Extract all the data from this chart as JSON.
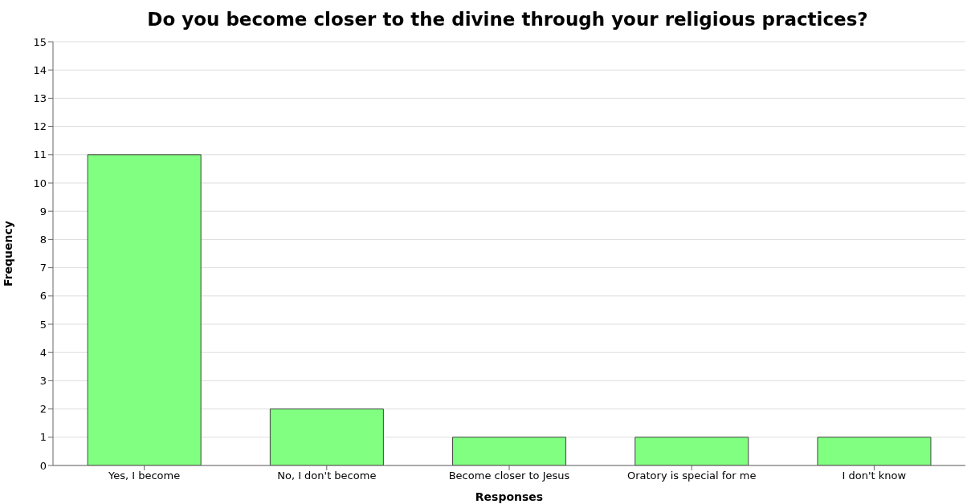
{
  "chart_data": {
    "type": "bar",
    "title": "Do you become closer to the divine through your religious practices?",
    "xlabel": "Responses",
    "ylabel": "Frequency",
    "categories": [
      "Yes, I become",
      "No, I don't become",
      "Become closer to Jesus",
      "Oratory is special for me",
      "I don't know"
    ],
    "values": [
      11,
      2,
      1,
      1,
      1
    ],
    "color": "#80ff80",
    "ylim": [
      0,
      15
    ],
    "yticks": [
      0,
      1,
      2,
      3,
      4,
      5,
      6,
      7,
      8,
      9,
      10,
      11,
      12,
      13,
      14,
      15
    ],
    "grid": "y"
  }
}
